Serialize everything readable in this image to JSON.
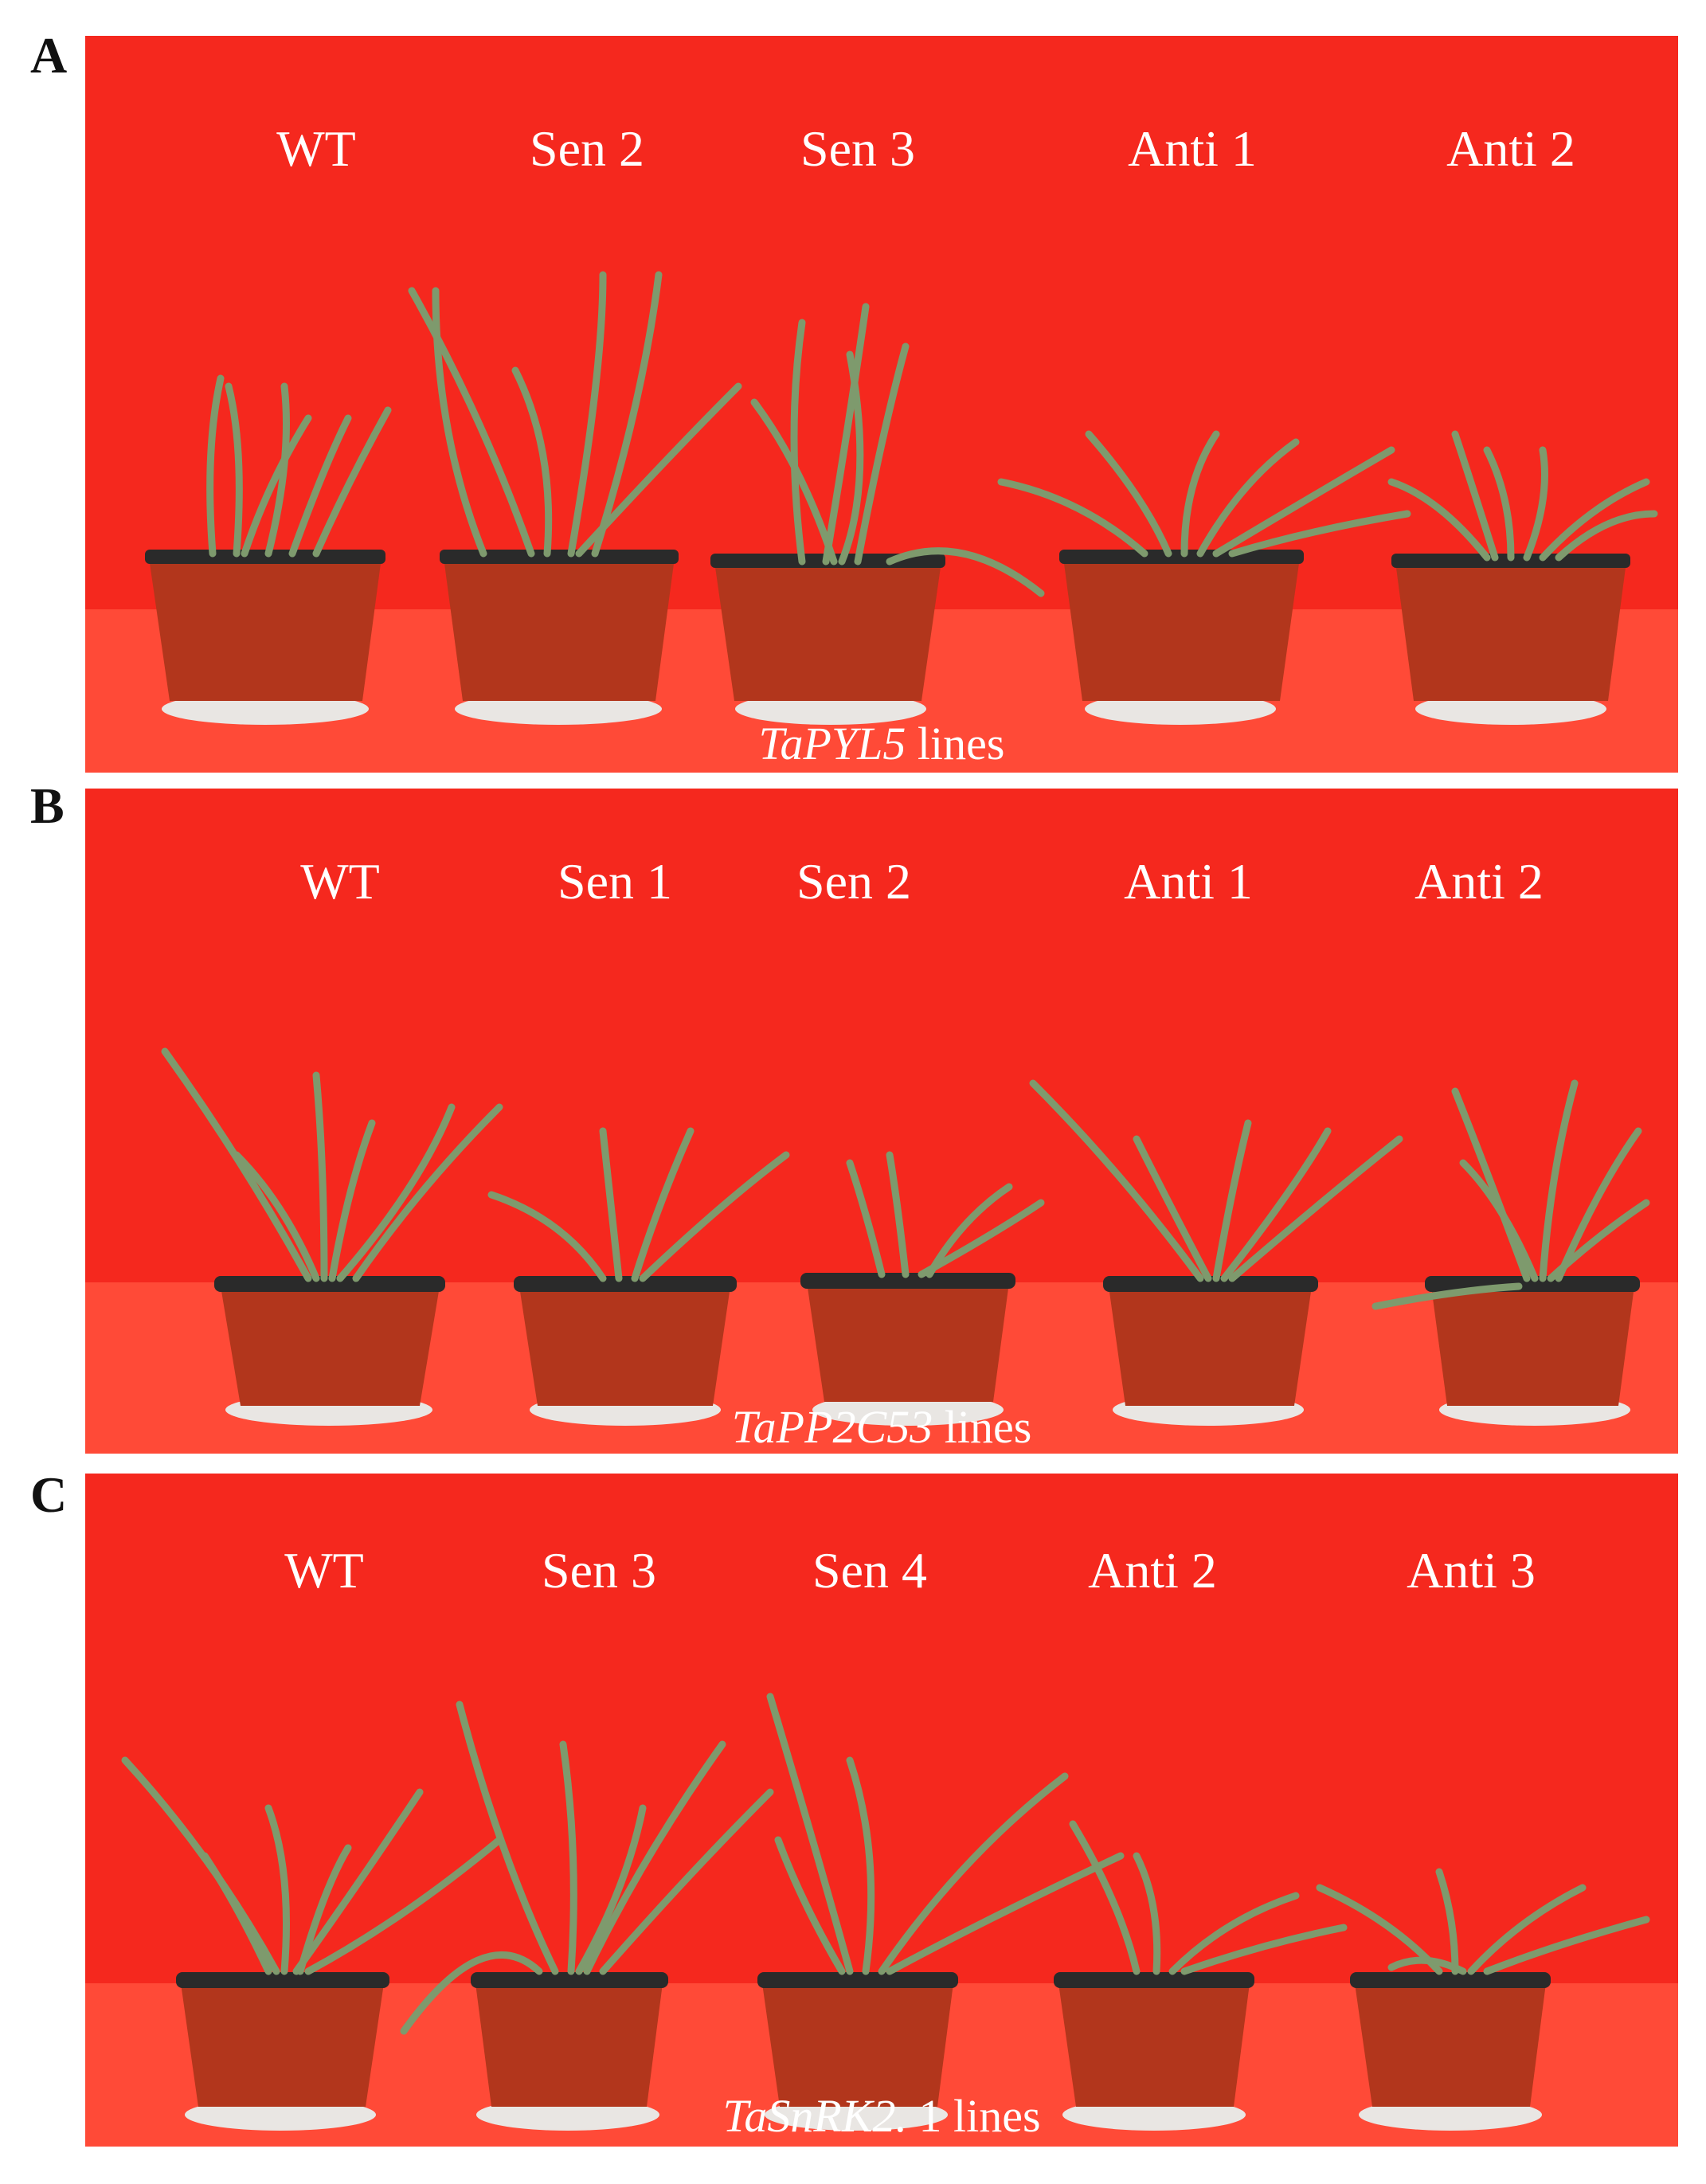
{
  "colors": {
    "background_red": "#f5281e",
    "floor_red": "#ff4a37",
    "pot_terracotta": "#b2361c",
    "pot_rim": "#2a2a2a",
    "saucer": "#e9e6e3",
    "leaf_green": "#7e9a6d",
    "label_white": "#ffffff"
  },
  "panels": [
    {
      "letter": "A",
      "labels": [
        "WT",
        "Sen 2",
        "Sen 3",
        "Anti 1",
        "Anti 2"
      ],
      "caption_gene": "TaPYL5",
      "caption_suffix": " lines"
    },
    {
      "letter": "B",
      "labels": [
        "WT",
        "Sen 1",
        "Sen 2",
        "Anti 1",
        "Anti 2"
      ],
      "caption_gene": "TaPP2C53",
      "caption_suffix": " lines"
    },
    {
      "letter": "C",
      "labels": [
        "WT",
        "Sen 3",
        "Sen 4",
        "Anti 2",
        "Anti 3"
      ],
      "caption_gene": "TaSnRK2.",
      "caption_suffix": " 1 lines"
    }
  ]
}
